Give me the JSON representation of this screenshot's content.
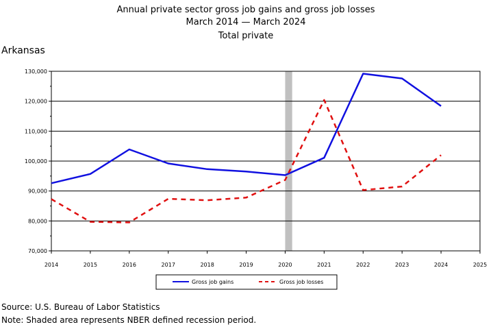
{
  "colors": {
    "gains": "#1010e0",
    "losses": "#e01010",
    "recession": "#c0c0c0",
    "grid": "#000000"
  },
  "chart_data": {
    "type": "line",
    "title": "Annual private sector gross job gains and gross job losses",
    "subtitle": "March 2014 — March 2024",
    "subtitle2": "Total private",
    "region": "Arkansas",
    "x": [
      2014,
      2015,
      2016,
      2017,
      2018,
      2019,
      2020,
      2021,
      2022,
      2023,
      2024
    ],
    "xlim": [
      2014,
      2025
    ],
    "x_ticks": [
      "2014",
      "2015",
      "2016",
      "2017",
      "2018",
      "2019",
      "2020",
      "2021",
      "2022",
      "2023",
      "2024",
      "2025"
    ],
    "ylim": [
      70000,
      130000
    ],
    "y_ticks": [
      "70,000",
      "80,000",
      "90,000",
      "100,000",
      "110,000",
      "120,000",
      "130,000"
    ],
    "grid": true,
    "recession": {
      "start": 2020.0,
      "end": 2020.18
    },
    "legend_position": "bottom",
    "series": [
      {
        "name": "Gross job gains",
        "style": "solid",
        "values": [
          92600,
          95700,
          103900,
          99200,
          97300,
          96500,
          95300,
          101100,
          129200,
          127600,
          118400
        ]
      },
      {
        "name": "Gross job losses",
        "style": "dashed",
        "values": [
          87300,
          79700,
          79500,
          87400,
          86900,
          87800,
          93700,
          120400,
          90300,
          91500,
          102000
        ]
      }
    ]
  },
  "footer": {
    "source": "Source: U.S. Bureau of Labor Statistics",
    "note": "Note: Shaded area represents NBER defined recession period."
  }
}
